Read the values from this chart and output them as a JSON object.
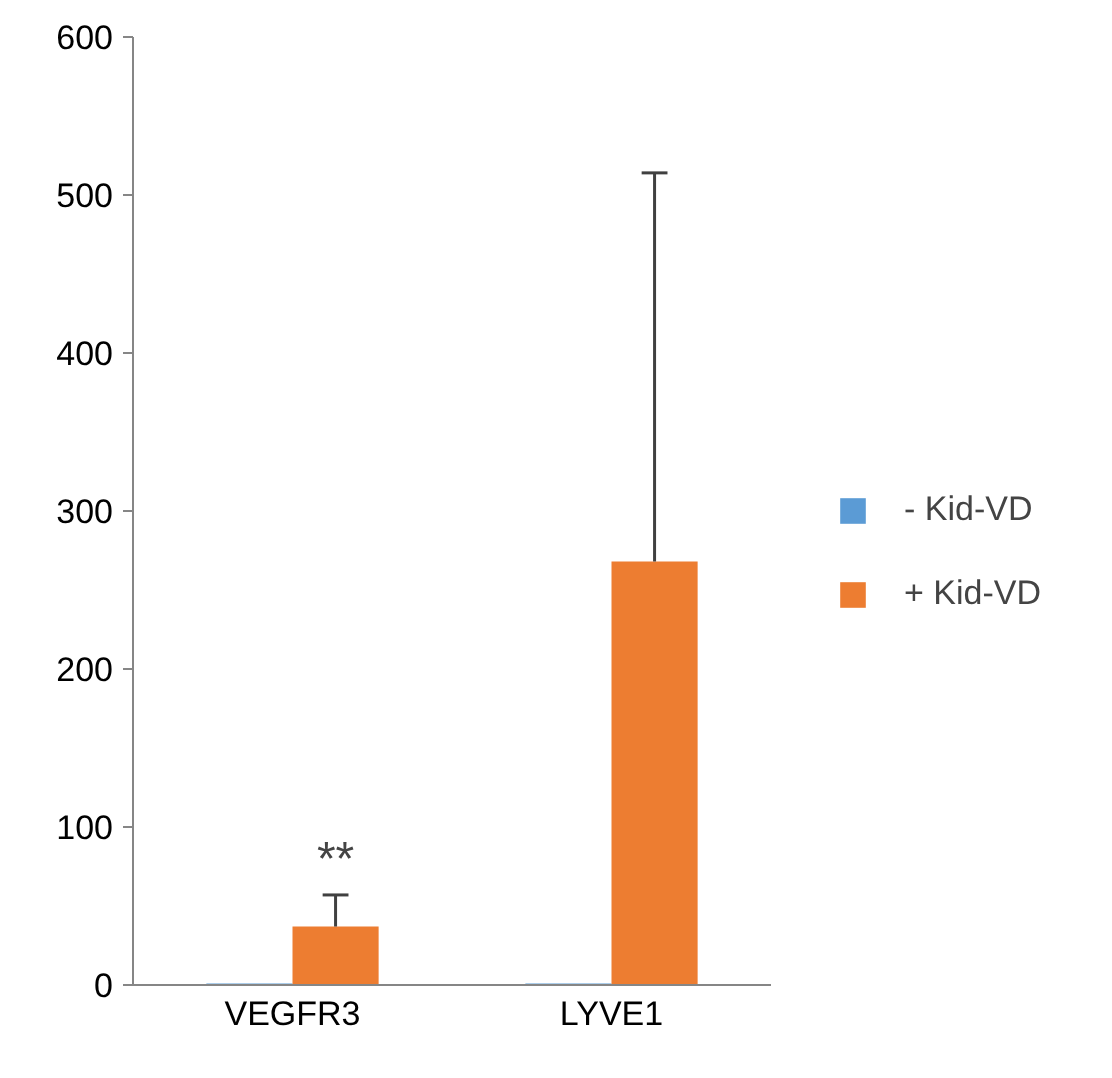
{
  "chart_data": {
    "type": "bar",
    "categories": [
      "VEGFR3",
      "LYVE1"
    ],
    "series": [
      {
        "name": "- Kid-VD",
        "color": "#5b9bd5",
        "values": [
          1,
          1
        ]
      },
      {
        "name": "+ Kid-VD",
        "color": "#ed7d31",
        "values": [
          37,
          268
        ],
        "errors": [
          [
            37,
            57
          ],
          [
            268,
            514
          ]
        ]
      }
    ],
    "ylim": [
      0,
      600
    ],
    "yticks": [
      0,
      100,
      200,
      300,
      400,
      500,
      600
    ],
    "grid": false,
    "legend": "right",
    "annotations": [
      "**"
    ]
  }
}
